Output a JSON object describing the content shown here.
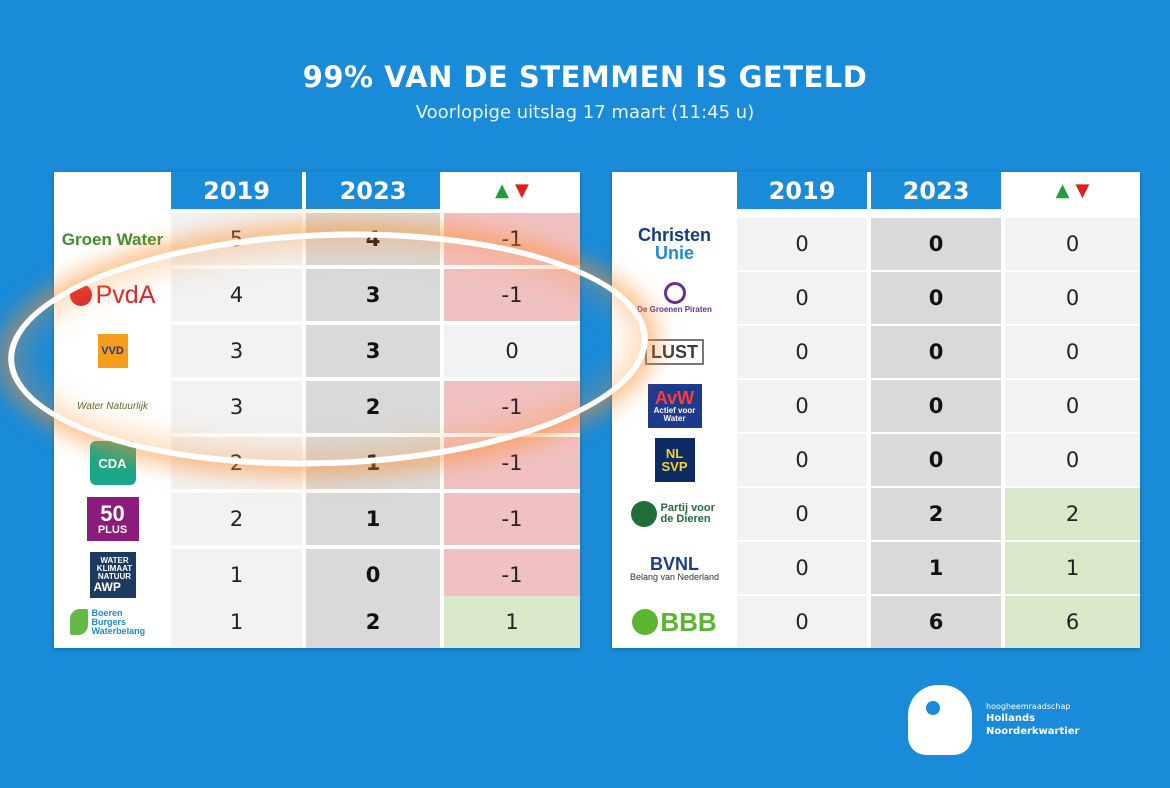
{
  "header": {
    "title": "99% VAN DE STEMMEN IS GETELD",
    "subtitle": "Voorlopige uitslag 17 maart (11:45 u)"
  },
  "columns": {
    "y2019": "2019",
    "y2023": "2023",
    "change": "▲▼"
  },
  "left_table": [
    {
      "party": "Groen Water",
      "logo": "groen-water-logo",
      "v2019": "5",
      "v2023": "4",
      "diff": "-1",
      "trend": "neg"
    },
    {
      "party": "PvdA",
      "logo": "pvda-logo",
      "v2019": "4",
      "v2023": "3",
      "diff": "-1",
      "trend": "neg"
    },
    {
      "party": "VVD",
      "logo": "vvd-logo",
      "v2019": "3",
      "v2023": "3",
      "diff": "0",
      "trend": "zero"
    },
    {
      "party": "Water Natuurlijk",
      "logo": "water-natuurlijk-logo",
      "v2019": "3",
      "v2023": "2",
      "diff": "-1",
      "trend": "neg"
    },
    {
      "party": "CDA",
      "logo": "cda-logo",
      "v2019": "2",
      "v2023": "1",
      "diff": "-1",
      "trend": "neg"
    },
    {
      "party": "50 PLUS",
      "logo": "50plus-logo",
      "v2019": "2",
      "v2023": "1",
      "diff": "-1",
      "trend": "neg"
    },
    {
      "party": "AWP",
      "logo": "awp-logo",
      "v2019": "1",
      "v2023": "0",
      "diff": "-1",
      "trend": "neg"
    },
    {
      "party": "Boeren Burgers Waterbelang",
      "logo": "bbw-logo",
      "v2019": "1",
      "v2023": "2",
      "diff": "1",
      "trend": "pos"
    }
  ],
  "right_table": [
    {
      "party": "Christen Unie",
      "logo": "christenunie-logo",
      "v2019": "0",
      "v2023": "0",
      "diff": "0",
      "trend": "zero"
    },
    {
      "party": "De Groenen Piraten",
      "logo": "groenen-piraten-logo",
      "v2019": "0",
      "v2023": "0",
      "diff": "0",
      "trend": "zero"
    },
    {
      "party": "De Vrije Lust",
      "logo": "vrije-lust-logo",
      "v2019": "0",
      "v2023": "0",
      "diff": "0",
      "trend": "zero"
    },
    {
      "party": "AvW Actief voor Water",
      "logo": "avw-logo",
      "v2019": "0",
      "v2023": "0",
      "diff": "0",
      "trend": "zero"
    },
    {
      "party": "NL SVP",
      "logo": "nlsvp-logo",
      "v2019": "0",
      "v2023": "0",
      "diff": "0",
      "trend": "zero"
    },
    {
      "party": "Partij voor de Dieren",
      "logo": "pvdd-logo",
      "v2019": "0",
      "v2023": "2",
      "diff": "2",
      "trend": "pos"
    },
    {
      "party": "BVNL Belang van Nederland",
      "logo": "bvnl-logo",
      "v2019": "0",
      "v2023": "1",
      "diff": "1",
      "trend": "pos"
    },
    {
      "party": "BBB",
      "logo": "bbb-logo",
      "v2019": "0",
      "v2023": "6",
      "diff": "6",
      "trend": "pos"
    }
  ],
  "logos": {
    "groen_water": "Groen Water",
    "pvda": "PvdA",
    "vvd": "VVD",
    "water_natuurlijk": "Water Natuurlijk",
    "cda": "CDA",
    "plus50_num": "50",
    "plus50_word": "PLUS",
    "awp_top": "WATER KLIMAAT NATUUR",
    "awp_bottom": "AWP",
    "bbw": "Boeren Burgers Waterbelang",
    "cu_1": "Christen",
    "cu_2": "Unie",
    "gp": "De Groenen Piraten",
    "lust": "LUST",
    "avw": "AvW",
    "avw_sub": "Actief voor Water",
    "nlsvp_1": "NL",
    "nlsvp_2": "SVP",
    "pvdd": "Partij voor de Dieren",
    "bvnl": "BVNL",
    "bvnl_sub": "Belang van Nederland",
    "bbb": "BBB"
  },
  "brand": {
    "line1": "hoogheemraadschap",
    "line2": "Hollands",
    "line3": "Noorderkwartier"
  },
  "colors": {
    "background": "#1a8bd8",
    "header_cell": "#1a8bd8",
    "positive": "#d9e8c8",
    "negative": "#f1c1c1",
    "neutral": "#f2f2f2",
    "year2023": "#d9d9d9",
    "highlight": "#ff8c28"
  }
}
